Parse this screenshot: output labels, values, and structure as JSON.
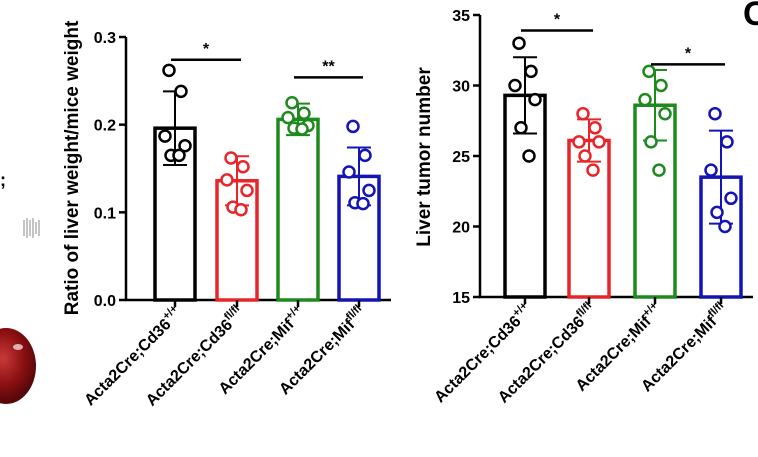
{
  "left_fragment": {
    "text": ";"
  },
  "panel_letter": "C",
  "chart_data": [
    {
      "type": "bar",
      "ylabel": "Ratio of liver weight/mice weight",
      "xlabel": "",
      "ylim": [
        0,
        0.3
      ],
      "yticks": [
        "0.0",
        "0.1",
        "0.2",
        "0.3"
      ],
      "categories": [
        {
          "base": "Acta2Cre;Cd36",
          "sup": "+/+"
        },
        {
          "base": "Acta2Cre;Cd36",
          "sup": "fl/fl"
        },
        {
          "base": "Acta2Cre;Mif",
          "sup": "+/+"
        },
        {
          "base": "Acta2Cre;Mif",
          "sup": "fl/fl"
        }
      ],
      "colors": [
        "#000000",
        "#e8262a",
        "#1e8a1e",
        "#1414b4"
      ],
      "means": [
        0.196,
        0.136,
        0.206,
        0.141
      ],
      "sd": [
        0.042,
        0.028,
        0.018,
        0.033
      ],
      "points": [
        [
          0.262,
          0.238,
          0.187,
          0.176,
          0.165,
          0.165
        ],
        [
          0.162,
          0.152,
          0.137,
          0.125,
          0.106,
          0.103
        ],
        [
          0.225,
          0.213,
          0.208,
          0.199,
          0.196,
          0.195
        ],
        [
          0.198,
          0.165,
          0.146,
          0.125,
          0.111,
          0.11
        ]
      ],
      "significance": [
        {
          "from": 0,
          "to": 1,
          "label": "*",
          "y": 0.274
        },
        {
          "from": 2,
          "to": 3,
          "label": "**",
          "y": 0.254
        }
      ]
    },
    {
      "type": "bar",
      "ylabel": "Liver tumor number",
      "xlabel": "",
      "ylim": [
        15,
        35
      ],
      "yticks": [
        "15",
        "20",
        "25",
        "30",
        "35"
      ],
      "categories": [
        {
          "base": "Acta2Cre;Cd36",
          "sup": "+/+"
        },
        {
          "base": "Acta2Cre;Cd36",
          "sup": "fl/fl"
        },
        {
          "base": "Acta2Cre;Mif",
          "sup": "+/+"
        },
        {
          "base": "Acta2Cre;Mif",
          "sup": "fl/fl"
        }
      ],
      "colors": [
        "#000000",
        "#e8262a",
        "#1e8a1e",
        "#1414b4"
      ],
      "means": [
        29.3,
        26.1,
        28.6,
        23.5
      ],
      "sd": [
        2.7,
        1.5,
        2.5,
        3.3
      ],
      "points": [
        [
          33,
          31,
          30,
          29,
          27,
          25
        ],
        [
          28,
          27,
          26,
          26,
          25,
          24
        ],
        [
          31,
          30,
          29,
          28,
          26,
          24
        ],
        [
          28,
          26,
          24,
          22,
          21,
          20
        ]
      ],
      "significance": [
        {
          "from": 0,
          "to": 1,
          "label": "*",
          "y": 33.9
        },
        {
          "from": 2,
          "to": 3,
          "label": "*",
          "y": 31.5
        }
      ]
    }
  ]
}
